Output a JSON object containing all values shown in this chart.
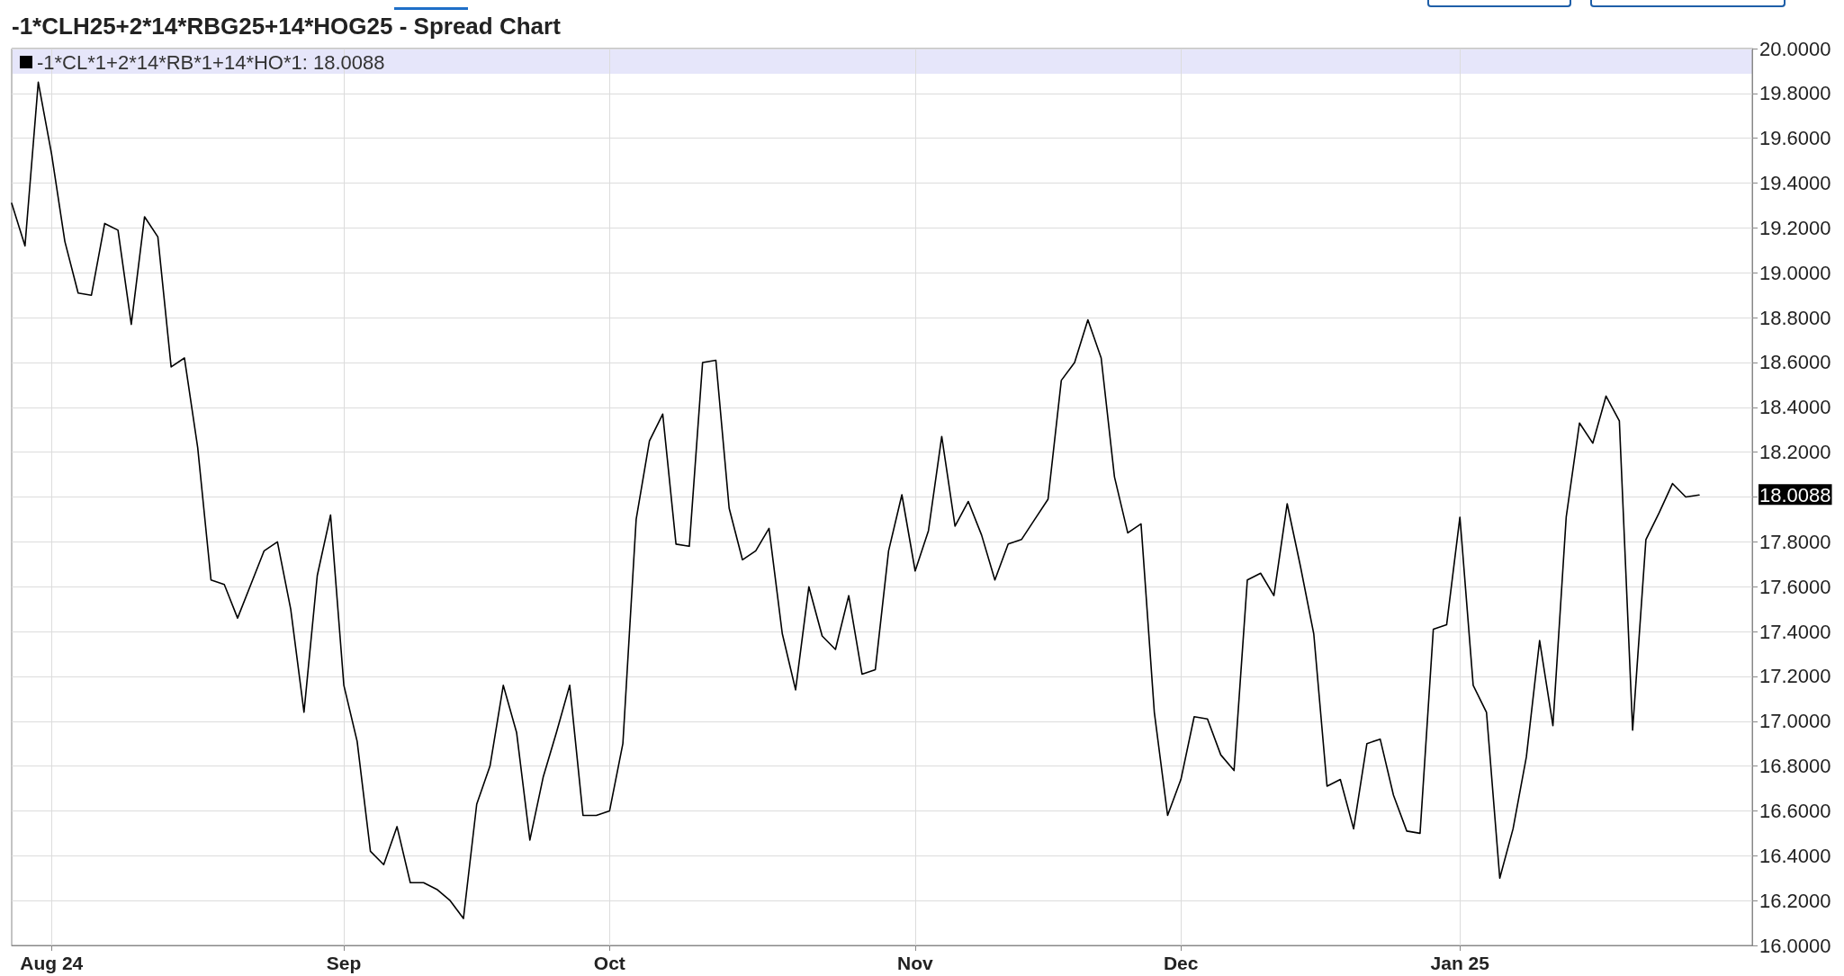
{
  "chart_data": {
    "type": "line",
    "title": "-1*CLH25+2*14*RBG25+14*HOG25 - Spread Chart",
    "categories": [
      null,
      null,
      null,
      "Aug 24",
      null,
      null,
      null,
      null,
      null,
      null,
      null,
      null,
      null,
      null,
      null,
      null,
      null,
      null,
      null,
      null,
      null,
      null,
      null,
      null,
      null,
      "Sep",
      null,
      null,
      null,
      null,
      null,
      null,
      null,
      null,
      null,
      null,
      null,
      null,
      null,
      null,
      null,
      null,
      null,
      null,
      null,
      "Oct",
      null,
      null,
      null,
      null,
      null,
      null,
      null,
      null,
      null,
      null,
      null,
      null,
      null,
      null,
      null,
      null,
      null,
      null,
      null,
      null,
      null,
      null,
      "Nov",
      null,
      null,
      null,
      null,
      null,
      null,
      null,
      null,
      null,
      null,
      null,
      null,
      null,
      null,
      null,
      null,
      null,
      null,
      null,
      "Dec",
      null,
      null,
      null,
      null,
      null,
      null,
      null,
      null,
      null,
      null,
      null,
      null,
      null,
      null,
      null,
      null,
      null,
      null,
      null,
      null,
      "Jan 25",
      null,
      null,
      null,
      null,
      null,
      null,
      null,
      null,
      null,
      null,
      null,
      null,
      null,
      null,
      null,
      null,
      null,
      null
    ],
    "series": [
      {
        "name": "-1*CL*1+2*14*RB*1+14*HO*1: 18.0088",
        "color": "#000000",
        "values": [
          19.31,
          19.12,
          19.85,
          19.53,
          19.14,
          18.91,
          18.9,
          19.22,
          19.19,
          18.77,
          19.25,
          19.16,
          18.58,
          18.62,
          18.22,
          17.63,
          17.61,
          17.46,
          17.61,
          17.76,
          17.8,
          17.5,
          17.04,
          17.65,
          17.92,
          17.16,
          16.91,
          16.42,
          16.36,
          16.53,
          16.28,
          16.28,
          16.25,
          16.2,
          16.12,
          16.63,
          16.8,
          17.16,
          16.95,
          16.47,
          16.75,
          16.95,
          17.16,
          16.58,
          16.58,
          16.6,
          16.9,
          17.9,
          18.25,
          18.37,
          17.79,
          17.78,
          18.6,
          18.61,
          17.95,
          17.72,
          17.76,
          17.86,
          17.39,
          17.14,
          17.6,
          17.38,
          17.32,
          17.56,
          17.21,
          17.23,
          17.76,
          18.01,
          17.67,
          17.85,
          18.27,
          17.87,
          17.98,
          17.83,
          17.63,
          17.79,
          17.81,
          17.9,
          17.99,
          18.52,
          18.6,
          18.79,
          18.62,
          18.09,
          17.84,
          17.88,
          17.04,
          16.58,
          16.74,
          17.02,
          17.01,
          16.85,
          16.78,
          17.63,
          17.66,
          17.56,
          17.97,
          17.69,
          17.39,
          16.71,
          16.74,
          16.52,
          16.9,
          16.92,
          16.67,
          16.51,
          16.5,
          17.41,
          17.43,
          17.91,
          17.16,
          17.04,
          16.3,
          16.52,
          16.84,
          17.36,
          16.98,
          17.91,
          18.33,
          18.24,
          18.45,
          18.34,
          16.96,
          17.81,
          17.93,
          18.06,
          18.0,
          18.0088
        ]
      }
    ],
    "ylim": [
      16,
      20
    ],
    "yticks": [
      {
        "value": 16,
        "label": "16.0000"
      },
      {
        "value": 16.2,
        "label": "16.2000"
      },
      {
        "value": 16.4,
        "label": "16.4000"
      },
      {
        "value": 16.6,
        "label": "16.6000"
      },
      {
        "value": 16.8,
        "label": "16.8000"
      },
      {
        "value": 17,
        "label": "17.0000"
      },
      {
        "value": 17.2,
        "label": "17.2000"
      },
      {
        "value": 17.4,
        "label": "17.4000"
      },
      {
        "value": 17.6,
        "label": "17.6000"
      },
      {
        "value": 17.8,
        "label": "17.8000"
      },
      {
        "value": 18,
        "label": null
      },
      {
        "value": 18.2,
        "label": "18.2000"
      },
      {
        "value": 18.4,
        "label": "18.4000"
      },
      {
        "value": 18.6,
        "label": "18.6000"
      },
      {
        "value": 18.8,
        "label": "18.8000"
      },
      {
        "value": 19,
        "label": "19.0000"
      },
      {
        "value": 19.2,
        "label": "19.2000"
      },
      {
        "value": 19.4,
        "label": "19.4000"
      },
      {
        "value": 19.6,
        "label": "19.6000"
      },
      {
        "value": 19.8,
        "label": "19.8000"
      },
      {
        "value": 20,
        "label": "20.0000"
      }
    ],
    "grid": true,
    "legend": "top left",
    "marker": "none",
    "annotations": [
      "18.0088"
    ]
  }
}
